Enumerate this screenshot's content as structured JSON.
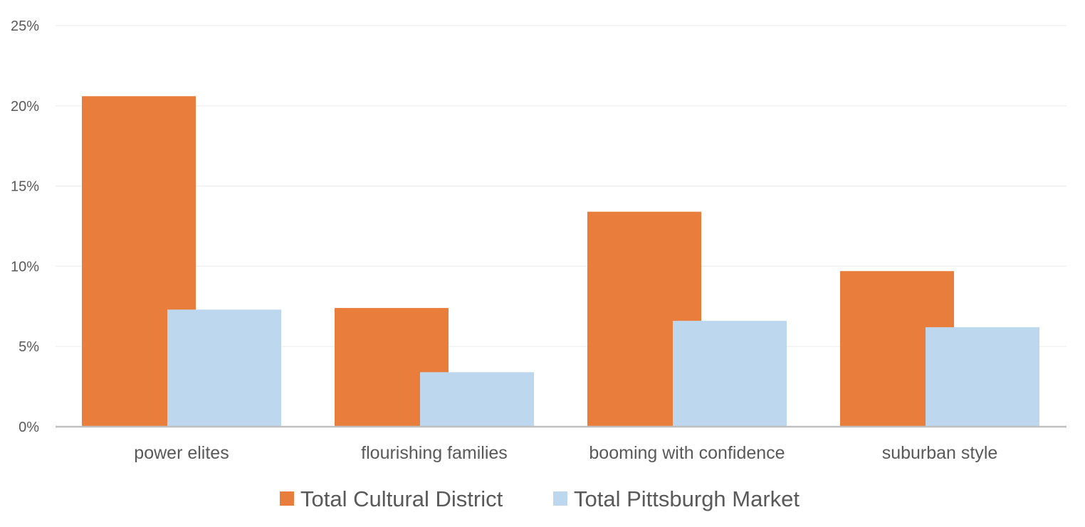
{
  "chart_data": {
    "type": "bar",
    "categories": [
      "power elites",
      "flourishing families",
      "booming with confidence",
      "suburban style"
    ],
    "series": [
      {
        "name": "Total Cultural District",
        "color": "#E97E3C",
        "values": [
          20.6,
          7.4,
          13.4,
          9.7
        ]
      },
      {
        "name": "Total Pittsburgh Market",
        "color": "#BDD7EE",
        "values": [
          7.3,
          3.4,
          6.6,
          6.2
        ]
      }
    ],
    "ylim": [
      0,
      25
    ],
    "yticks": [
      0,
      5,
      10,
      15,
      20,
      25
    ],
    "ytick_labels": [
      "0%",
      "5%",
      "10%",
      "15%",
      "20%",
      "25%"
    ],
    "title": "",
    "xlabel": "",
    "ylabel": "",
    "grid": true,
    "legend": "bottom"
  }
}
